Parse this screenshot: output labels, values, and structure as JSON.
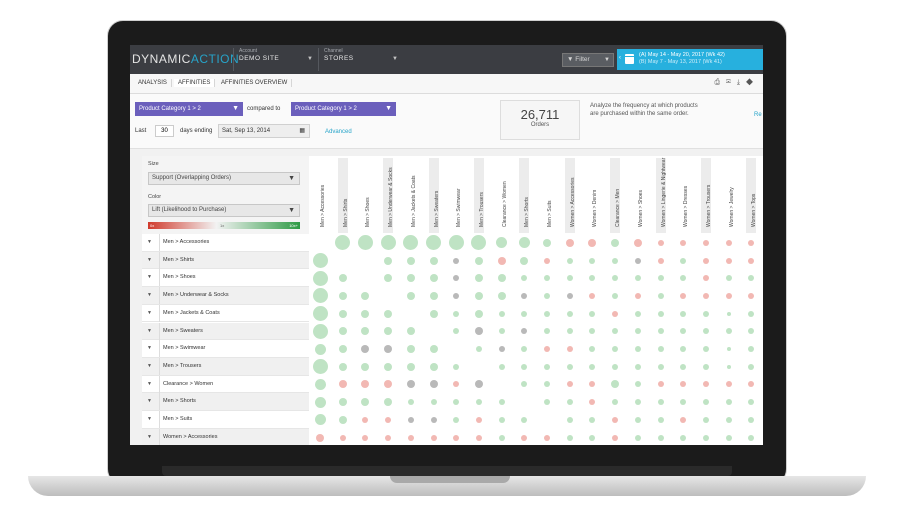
{
  "app": {
    "logo_main": "DYNAMIC",
    "logo_accent": "ACTION",
    "account_label": "Account",
    "account_value": "DEMO SITE",
    "channel_label": "Channel",
    "channel_value": "STORES",
    "filter_label": "Filter",
    "date_primary": "(A) May 14 - May 20, 2017 (Wk 42)",
    "date_secondary": "(B) May 7 - May 13, 2017 (Wk 41)"
  },
  "tabs": [
    "ANALYSIS",
    "AFFINITIES",
    "AFFINITIES OVERVIEW"
  ],
  "controls": {
    "dropdown_a": "Product Category 1 > 2",
    "compared_to": "compared to",
    "dropdown_b": "Product Category 1 > 2",
    "last_label": "Last",
    "days_value": "30",
    "days_ending": "days ending",
    "date_value": "Sat, Sep 13, 2014",
    "advanced": "Advanced",
    "orders_count": "26,711",
    "orders_label": "Orders",
    "description": "Analyze the frequency at which products are purchased within the same order.",
    "right_link": "Re"
  },
  "legend": {
    "size_label": "Size",
    "size_value": "Support (Overlapping Orders)",
    "color_label": "Color",
    "color_value": "Lift (Likelihood to Purchase)",
    "scale_min": "0x",
    "scale_mid": "1x",
    "scale_max": "10x+"
  },
  "columns": [
    "Men > Accessories",
    "Men > Shirts",
    "Men > Shoes",
    "Men > Underwear & Socks",
    "Men > Jackets & Coats",
    "Men > Sweaters",
    "Men > Swimwear",
    "Men > Trousers",
    "Clearance > Women",
    "Men > Shorts",
    "Men > Suits",
    "Women > Accessories",
    "Women > Denim",
    "Clearance > Men",
    "Women > Shoes",
    "Women > Lingerie & Nightwear",
    "Women > Dresses",
    "Women > Trousers",
    "Women > Jewelry",
    "Women > Tops"
  ],
  "rows": [
    "Men > Accessories",
    "Men > Shirts",
    "Men > Shoes",
    "Men > Underwear & Socks",
    "Men > Jackets & Coats",
    "Men > Sweaters",
    "Men > Swimwear",
    "Men > Trousers",
    "Clearance > Women",
    "Men > Shorts",
    "Men > Suits",
    "Women > Accessories"
  ],
  "matrix": {
    "sizes": [
      [
        0,
        5,
        5,
        5,
        5,
        5,
        5,
        5,
        4,
        4,
        3,
        3,
        3,
        3,
        3,
        2,
        2,
        2,
        2,
        2
      ],
      [
        5,
        0,
        3,
        3,
        3,
        3,
        2,
        3,
        3,
        3,
        2,
        2,
        2,
        2,
        2,
        2,
        2,
        2,
        2,
        2
      ],
      [
        5,
        3,
        0,
        3,
        3,
        3,
        2,
        3,
        3,
        2,
        2,
        2,
        2,
        2,
        2,
        2,
        2,
        2,
        2,
        2
      ],
      [
        5,
        3,
        3,
        0,
        3,
        3,
        2,
        3,
        3,
        2,
        2,
        2,
        2,
        2,
        2,
        2,
        2,
        2,
        2,
        2
      ],
      [
        5,
        3,
        3,
        3,
        0,
        3,
        2,
        3,
        2,
        2,
        2,
        2,
        2,
        2,
        2,
        2,
        2,
        2,
        1,
        2
      ],
      [
        5,
        3,
        3,
        3,
        3,
        0,
        2,
        3,
        2,
        2,
        2,
        2,
        2,
        2,
        2,
        2,
        2,
        2,
        2,
        2
      ],
      [
        4,
        3,
        3,
        3,
        3,
        3,
        0,
        2,
        2,
        2,
        2,
        2,
        2,
        2,
        2,
        2,
        2,
        2,
        1,
        2
      ],
      [
        5,
        3,
        3,
        3,
        3,
        3,
        2,
        0,
        2,
        2,
        2,
        2,
        2,
        2,
        2,
        2,
        2,
        2,
        1,
        2
      ],
      [
        4,
        3,
        3,
        3,
        3,
        3,
        2,
        3,
        0,
        2,
        2,
        2,
        2,
        3,
        2,
        2,
        2,
        2,
        2,
        2
      ],
      [
        4,
        3,
        3,
        3,
        2,
        2,
        2,
        2,
        2,
        0,
        2,
        2,
        2,
        2,
        2,
        2,
        2,
        2,
        2,
        2
      ],
      [
        4,
        3,
        2,
        2,
        2,
        2,
        2,
        2,
        2,
        2,
        0,
        2,
        2,
        2,
        2,
        2,
        2,
        2,
        2,
        2
      ],
      [
        3,
        2,
        2,
        2,
        2,
        2,
        2,
        2,
        2,
        2,
        2,
        2,
        2,
        2,
        2,
        2,
        2,
        2,
        2,
        2
      ]
    ],
    "colors": [
      [
        "n",
        "g",
        "g",
        "g",
        "g",
        "g",
        "g",
        "g",
        "g",
        "g",
        "g",
        "r",
        "r",
        "g",
        "r",
        "r",
        "r",
        "r",
        "r",
        "r"
      ],
      [
        "g",
        "n",
        "n",
        "g",
        "g",
        "g",
        "k",
        "g",
        "r",
        "g",
        "r",
        "g",
        "g",
        "g",
        "k",
        "r",
        "g",
        "r",
        "r",
        "r"
      ],
      [
        "g",
        "g",
        "n",
        "g",
        "g",
        "g",
        "k",
        "g",
        "g",
        "g",
        "g",
        "g",
        "g",
        "g",
        "g",
        "g",
        "g",
        "r",
        "g",
        "g"
      ],
      [
        "g",
        "g",
        "g",
        "n",
        "g",
        "g",
        "k",
        "g",
        "g",
        "k",
        "g",
        "k",
        "r",
        "g",
        "r",
        "g",
        "r",
        "r",
        "r",
        "r"
      ],
      [
        "g",
        "g",
        "g",
        "g",
        "n",
        "g",
        "g",
        "g",
        "g",
        "g",
        "g",
        "g",
        "g",
        "r",
        "g",
        "g",
        "g",
        "g",
        "g",
        "g"
      ],
      [
        "g",
        "g",
        "g",
        "g",
        "g",
        "n",
        "g",
        "k",
        "g",
        "k",
        "g",
        "g",
        "g",
        "g",
        "g",
        "g",
        "g",
        "g",
        "g",
        "g"
      ],
      [
        "g",
        "g",
        "k",
        "k",
        "g",
        "g",
        "n",
        "g",
        "k",
        "g",
        "r",
        "r",
        "g",
        "g",
        "g",
        "g",
        "g",
        "g",
        "g",
        "g"
      ],
      [
        "g",
        "g",
        "g",
        "g",
        "g",
        "g",
        "g",
        "n",
        "g",
        "g",
        "g",
        "g",
        "g",
        "g",
        "g",
        "g",
        "g",
        "g",
        "g",
        "g"
      ],
      [
        "g",
        "r",
        "r",
        "r",
        "k",
        "k",
        "r",
        "k",
        "n",
        "g",
        "g",
        "r",
        "r",
        "g",
        "g",
        "r",
        "r",
        "r",
        "r",
        "r"
      ],
      [
        "g",
        "g",
        "g",
        "g",
        "g",
        "g",
        "g",
        "g",
        "g",
        "n",
        "g",
        "g",
        "r",
        "g",
        "g",
        "g",
        "g",
        "g",
        "g",
        "g"
      ],
      [
        "g",
        "g",
        "r",
        "r",
        "k",
        "k",
        "g",
        "r",
        "g",
        "g",
        "n",
        "g",
        "g",
        "r",
        "g",
        "g",
        "r",
        "g",
        "g",
        "g"
      ],
      [
        "r",
        "r",
        "r",
        "r",
        "r",
        "r",
        "r",
        "r",
        "g",
        "r",
        "r",
        "g",
        "g",
        "r",
        "g",
        "g",
        "g",
        "g",
        "g",
        "g"
      ]
    ],
    "palette": {
      "g": "#bfe3c4",
      "r": "#f2b8b3",
      "k": "#b9b9b9",
      "n": "#ffffff",
      "G": "#7fcc8f"
    }
  }
}
